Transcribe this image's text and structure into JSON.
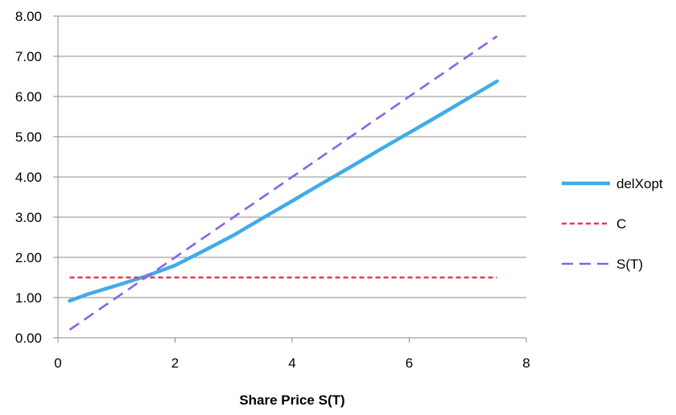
{
  "chart_data": {
    "type": "line",
    "title": "",
    "xlabel": "Share Price S(T)",
    "ylabel": "",
    "xlim": [
      0,
      8
    ],
    "ylim": [
      0,
      8
    ],
    "x_ticks": [
      "0",
      "2",
      "4",
      "6",
      "8"
    ],
    "y_ticks": [
      "0.00",
      "1.00",
      "2.00",
      "3.00",
      "4.00",
      "5.00",
      "6.00",
      "7.00",
      "8.00"
    ],
    "grid": "horizontal",
    "legend_position": "right",
    "series": [
      {
        "name": "delXopt",
        "color": "#41ABE8",
        "style": "solid",
        "x": [
          0.2,
          0.5,
          1.0,
          1.5,
          2.0,
          2.5,
          3.0,
          3.5,
          4.0,
          4.5,
          5.0,
          5.5,
          6.0,
          6.5,
          7.0,
          7.5
        ],
        "y": [
          0.92,
          1.08,
          1.3,
          1.53,
          1.8,
          2.17,
          2.55,
          2.98,
          3.4,
          3.83,
          4.25,
          4.68,
          5.1,
          5.52,
          5.95,
          6.38
        ]
      },
      {
        "name": "C",
        "color": "#E8384F",
        "style": "dashed",
        "x": [
          0.2,
          7.5
        ],
        "y": [
          1.5,
          1.5
        ]
      },
      {
        "name": "S(T)",
        "color": "#8A63E8",
        "style": "dashed",
        "x": [
          0.2,
          7.5
        ],
        "y": [
          0.2,
          7.5
        ]
      }
    ]
  }
}
